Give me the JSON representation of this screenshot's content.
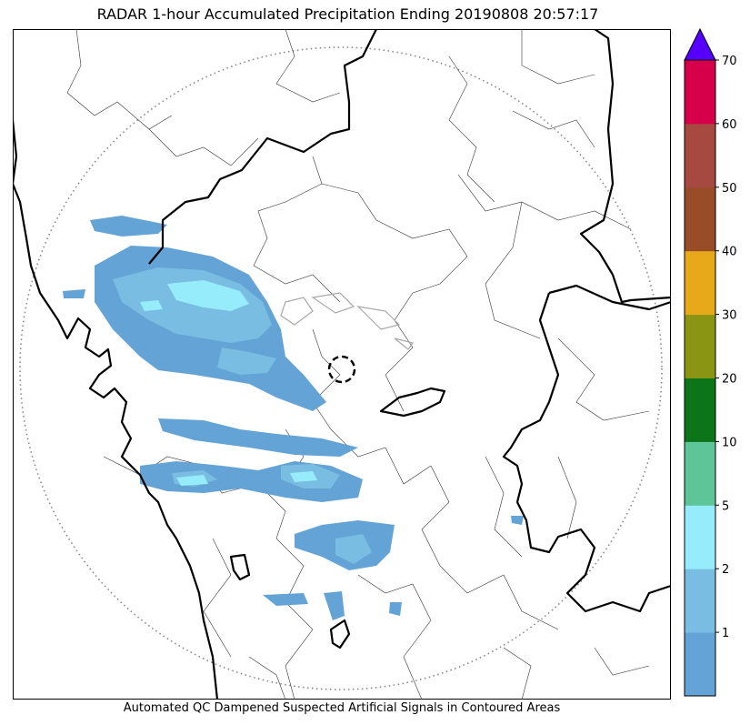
{
  "title": "RADAR 1-hour Accumulated Precipitation Ending 20190808 20:57:17",
  "caption": "Automated QC Dampened Suspected Artificial Signals in Contoured Areas",
  "colorbar": {
    "tick_labels": [
      "1",
      "2",
      "5",
      "10",
      "20",
      "30",
      "40",
      "50",
      "60",
      "70"
    ],
    "bins": [
      {
        "color": "#64a3d5"
      },
      {
        "color": "#79bde2"
      },
      {
        "color": "#97ecfb"
      },
      {
        "color": "#5ec599"
      },
      {
        "color": "#0d7519"
      },
      {
        "color": "#8a9514"
      },
      {
        "color": "#e7a81a"
      },
      {
        "color": "#984c28"
      },
      {
        "color": "#a54941"
      },
      {
        "color": "#d6004a"
      }
    ],
    "extend_color": "#5500ff"
  },
  "colors": {
    "rain_light": "#64a3d5",
    "rain_medium": "#79bde2",
    "rain_heavy": "#97ecfb",
    "coast": "#000000",
    "range_ring": "#888888"
  }
}
